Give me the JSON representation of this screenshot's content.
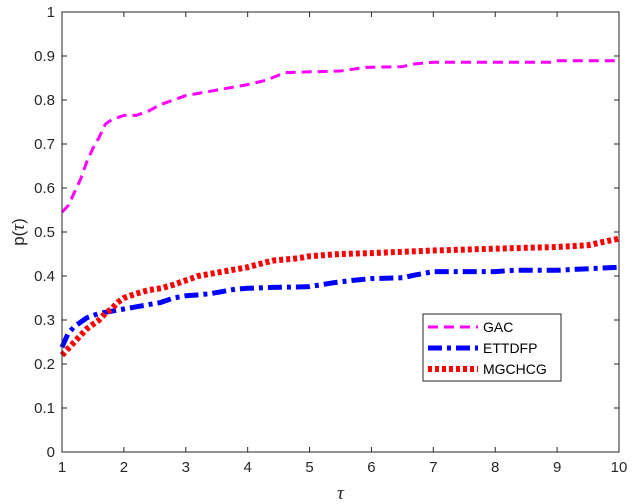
{
  "chart_data": {
    "type": "line",
    "title": "",
    "xlabel": "τ",
    "ylabel_prefix": "p(",
    "ylabel_symbol": "τ",
    "ylabel_suffix": ")",
    "xlim": [
      1,
      10
    ],
    "ylim": [
      0,
      1
    ],
    "x_ticks": [
      1,
      2,
      3,
      4,
      5,
      6,
      7,
      8,
      9,
      10
    ],
    "y_ticks": [
      0,
      0.1,
      0.2,
      0.3,
      0.4,
      0.5,
      0.6,
      0.7,
      0.8,
      0.9,
      1
    ],
    "y_tick_labels": [
      "0",
      "0.1",
      "0.2",
      "0.3",
      "0.4",
      "0.5",
      "0.6",
      "0.7",
      "0.8",
      "0.9",
      "1"
    ],
    "grid": false,
    "legend_position": "lower-right",
    "series": [
      {
        "name": "GAC",
        "color": "#ff00ff",
        "style": "dashed",
        "x": [
          1,
          1.1,
          1.2,
          1.3,
          1.4,
          1.5,
          1.6,
          1.7,
          1.8,
          1.9,
          2.0,
          2.2,
          2.4,
          2.6,
          2.8,
          3.0,
          3.2,
          3.4,
          3.6,
          3.8,
          4.0,
          4.3,
          4.6,
          5.0,
          5.5,
          5.9,
          6.5,
          6.7,
          7.0,
          8.0,
          8.9,
          9.0,
          10
        ],
        "y": [
          0.545,
          0.56,
          0.59,
          0.62,
          0.66,
          0.69,
          0.715,
          0.745,
          0.755,
          0.76,
          0.765,
          0.765,
          0.775,
          0.79,
          0.8,
          0.81,
          0.815,
          0.82,
          0.825,
          0.83,
          0.835,
          0.845,
          0.862,
          0.864,
          0.866,
          0.874,
          0.876,
          0.882,
          0.886,
          0.886,
          0.886,
          0.889,
          0.889
        ]
      },
      {
        "name": "ETTDFP",
        "color": "#0000ff",
        "style": "dash-dot",
        "x": [
          1,
          1.1,
          1.2,
          1.3,
          1.4,
          1.5,
          1.6,
          1.8,
          2.0,
          2.2,
          2.4,
          2.6,
          2.8,
          3.0,
          3.2,
          3.4,
          3.6,
          3.8,
          4.0,
          4.4,
          4.8,
          5.0,
          5.4,
          5.7,
          6.0,
          6.5,
          6.7,
          7.0,
          8.0,
          8.3,
          9.0,
          10
        ],
        "y": [
          0.238,
          0.27,
          0.285,
          0.295,
          0.305,
          0.31,
          0.315,
          0.32,
          0.325,
          0.33,
          0.335,
          0.34,
          0.35,
          0.355,
          0.357,
          0.36,
          0.365,
          0.37,
          0.372,
          0.374,
          0.375,
          0.376,
          0.385,
          0.39,
          0.394,
          0.396,
          0.402,
          0.41,
          0.41,
          0.413,
          0.413,
          0.42
        ]
      },
      {
        "name": "MGCHCG",
        "color": "#ff0000",
        "style": "dotted",
        "x": [
          1,
          1.1,
          1.2,
          1.3,
          1.4,
          1.5,
          1.6,
          1.7,
          1.8,
          1.9,
          2.0,
          2.2,
          2.4,
          2.6,
          2.8,
          3.0,
          3.2,
          3.4,
          3.6,
          3.8,
          4.0,
          4.4,
          4.8,
          5.0,
          5.5,
          6.0,
          6.5,
          7.0,
          7.5,
          8.0,
          8.5,
          9.0,
          9.5,
          10
        ],
        "y": [
          0.22,
          0.235,
          0.25,
          0.265,
          0.28,
          0.29,
          0.3,
          0.315,
          0.325,
          0.34,
          0.35,
          0.36,
          0.368,
          0.372,
          0.38,
          0.39,
          0.4,
          0.405,
          0.41,
          0.415,
          0.42,
          0.435,
          0.44,
          0.445,
          0.45,
          0.452,
          0.455,
          0.458,
          0.46,
          0.462,
          0.464,
          0.466,
          0.47,
          0.485
        ]
      }
    ]
  }
}
